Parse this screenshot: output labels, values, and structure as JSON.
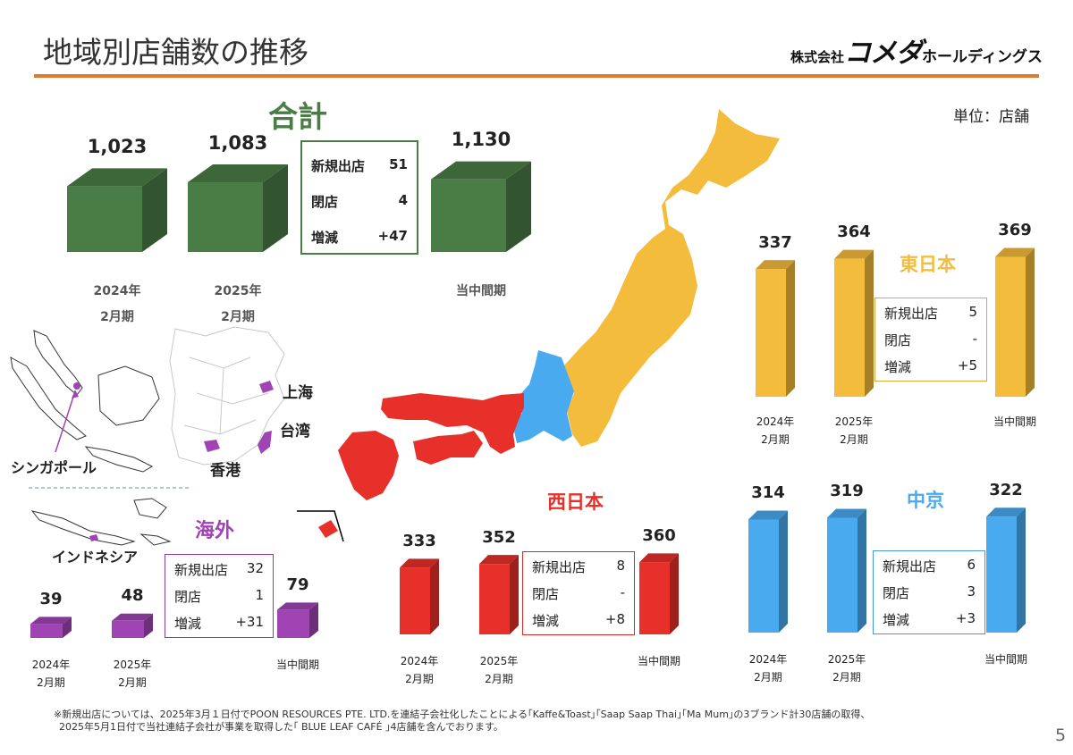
{
  "header": {
    "title": "地域別店舗数の推移",
    "logo_prefix": "株式会社",
    "logo_mark": "コメダ",
    "logo_suffix": "ホールディングス"
  },
  "unit_label": "単位：店舗",
  "chart_data": [
    {
      "id": "total",
      "type": "bar",
      "title": "合計",
      "color": "#4a7c46",
      "categories": [
        "2024年 2月期",
        "2025年 2月期",
        "当中間期"
      ],
      "values": [
        1023,
        1083,
        1130
      ],
      "value_labels": [
        "1,023",
        "1,083",
        "1,130"
      ],
      "summary": [
        {
          "label": "新規出店",
          "value": "51"
        },
        {
          "label": "閉店",
          "value": "4"
        },
        {
          "label": "増減",
          "value": "+47"
        }
      ]
    },
    {
      "id": "overseas",
      "type": "bar",
      "title": "海外",
      "color": "#a044b4",
      "categories": [
        "2024年 2月期",
        "2025年 2月期",
        "当中間期"
      ],
      "values": [
        39,
        48,
        79
      ],
      "value_labels": [
        "39",
        "48",
        "79"
      ],
      "summary": [
        {
          "label": "新規出店",
          "value": "32"
        },
        {
          "label": "閉店",
          "value": "1"
        },
        {
          "label": "増減",
          "value": "+31"
        }
      ]
    },
    {
      "id": "west",
      "type": "bar",
      "title": "西日本",
      "color": "#e8302a",
      "categories": [
        "2024年 2月期",
        "2025年 2月期",
        "当中間期"
      ],
      "values": [
        333,
        352,
        360
      ],
      "value_labels": [
        "333",
        "352",
        "360"
      ],
      "summary": [
        {
          "label": "新規出店",
          "value": "8"
        },
        {
          "label": "閉店",
          "value": "-"
        },
        {
          "label": "増減",
          "value": "+8"
        }
      ]
    },
    {
      "id": "east",
      "type": "bar",
      "title": "東日本",
      "color": "#f4bc3c",
      "categories": [
        "2024年 2月期",
        "2025年 2月期",
        "当中間期"
      ],
      "values": [
        337,
        364,
        369
      ],
      "value_labels": [
        "337",
        "364",
        "369"
      ],
      "summary": [
        {
          "label": "新規出店",
          "value": "5"
        },
        {
          "label": "閉店",
          "value": "-"
        },
        {
          "label": "増減",
          "value": "+5"
        }
      ]
    },
    {
      "id": "chukyo",
      "type": "bar",
      "title": "中京",
      "color": "#4aaaf0",
      "categories": [
        "2024年 2月期",
        "2025年 2月期",
        "当中間期"
      ],
      "values": [
        314,
        319,
        322
      ],
      "value_labels": [
        "314",
        "319",
        "322"
      ],
      "summary": [
        {
          "label": "新規出店",
          "value": "6"
        },
        {
          "label": "閉店",
          "value": "3"
        },
        {
          "label": "増減",
          "value": "+3"
        }
      ]
    }
  ],
  "map_labels": {
    "shanghai": "上海",
    "taiwan": "台湾",
    "hongkong": "香港",
    "singapore": "シンガポール",
    "indonesia": "インドネシア"
  },
  "footnote": {
    "line1": "※新規出店については、2025年3月１日付でPOON RESOURCES PTE. LTD.を連結子会社化したことによる｢Kaffe&Toast｣｢Saap Saap Thai｣｢Ma Mum｣の3ブランド計30店舗の取得、",
    "line2": "2025年5月1日付で当社連結子会社が事業を取得した｢ BLUE LEAF CAFÉ ｣4店舗を含んでおります。"
  },
  "page_number": "5"
}
